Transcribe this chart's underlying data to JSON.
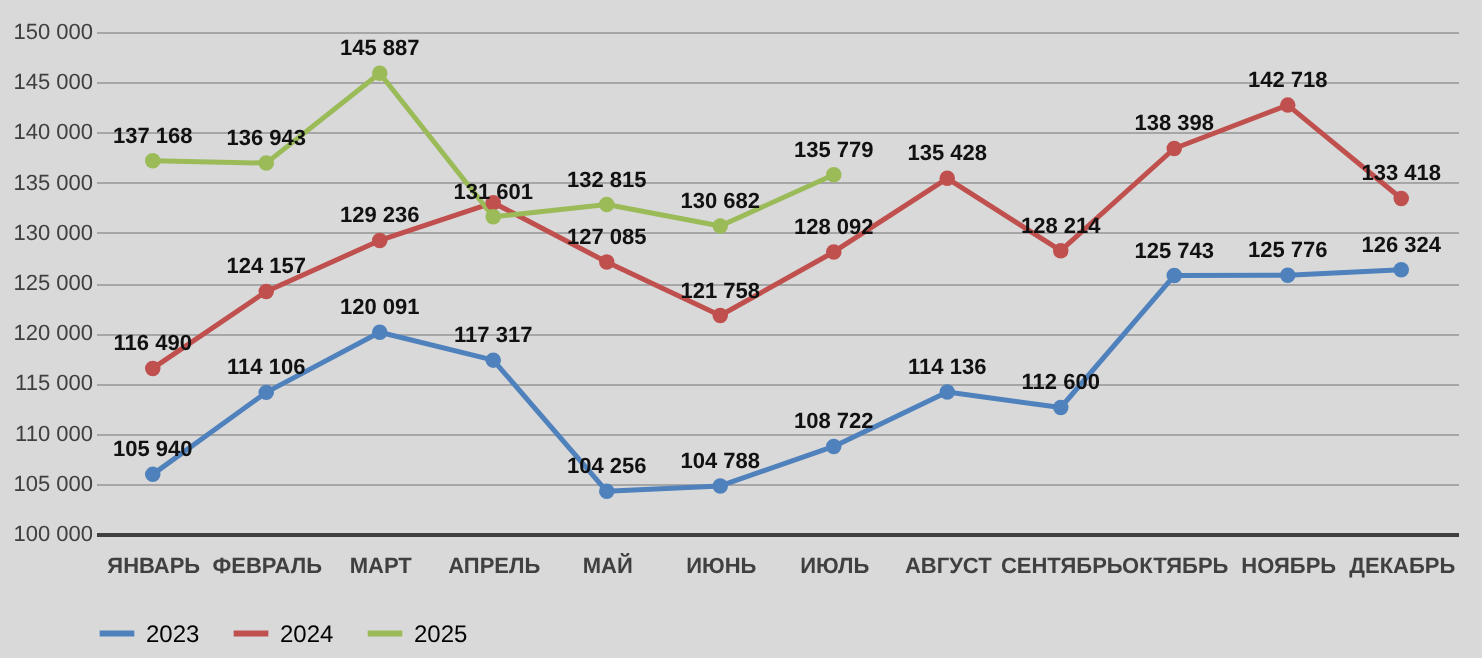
{
  "chart_data": {
    "type": "line",
    "categories": [
      "ЯНВАРЬ",
      "ФЕВРАЛЬ",
      "МАРТ",
      "АПРЕЛЬ",
      "МАЙ",
      "ИЮНЬ",
      "ИЮЛЬ",
      "АВГУСТ",
      "СЕНТЯБРЬ",
      "ОКТЯБРЬ",
      "НОЯБРЬ",
      "ДЕКАБРЬ"
    ],
    "series": [
      {
        "name": "2023",
        "color": "#4f81bd",
        "values": [
          105940,
          114106,
          120091,
          117317,
          104256,
          104788,
          108722,
          114136,
          112600,
          125743,
          125776,
          126324
        ],
        "value_labels": [
          "105 940",
          "114 106",
          "120 091",
          "117 317",
          "104 256",
          "104 788",
          "108 722",
          "114 136",
          "112 600",
          "125 743",
          "125 776",
          "126 324"
        ]
      },
      {
        "name": "2024",
        "color": "#c0504d",
        "values": [
          116490,
          124157,
          129236,
          133000,
          127085,
          121758,
          128092,
          135428,
          128214,
          138398,
          142718,
          133418
        ],
        "value_labels": [
          "116 490",
          "124 157",
          "129 236",
          null,
          "127 085",
          "121 758",
          "128 092",
          "135 428",
          "128 214",
          "138 398",
          "142 718",
          "133 418"
        ]
      },
      {
        "name": "2025",
        "color": "#9bbb59",
        "values": [
          137168,
          136943,
          145887,
          131601,
          132815,
          130682,
          135779,
          null,
          null,
          null,
          null,
          null
        ],
        "value_labels": [
          "137 168",
          "136 943",
          "145 887",
          "131 601",
          "132 815",
          "130 682",
          "135 779",
          null,
          null,
          null,
          null,
          null
        ]
      }
    ],
    "ylim": [
      100000,
      150000
    ],
    "yticks": [
      {
        "value": 100000,
        "label": "100 000"
      },
      {
        "value": 105000,
        "label": "105 000"
      },
      {
        "value": 110000,
        "label": "110 000"
      },
      {
        "value": 115000,
        "label": "115 000"
      },
      {
        "value": 120000,
        "label": "120 000"
      },
      {
        "value": 125000,
        "label": "125 000"
      },
      {
        "value": 130000,
        "label": "130 000"
      },
      {
        "value": 135000,
        "label": "135 000"
      },
      {
        "value": 140000,
        "label": "140 000"
      },
      {
        "value": 145000,
        "label": "145 000"
      },
      {
        "value": 150000,
        "label": "150 000"
      }
    ],
    "grid": "y",
    "legend": "bottom",
    "marker": "circle",
    "line_style": "solid"
  }
}
